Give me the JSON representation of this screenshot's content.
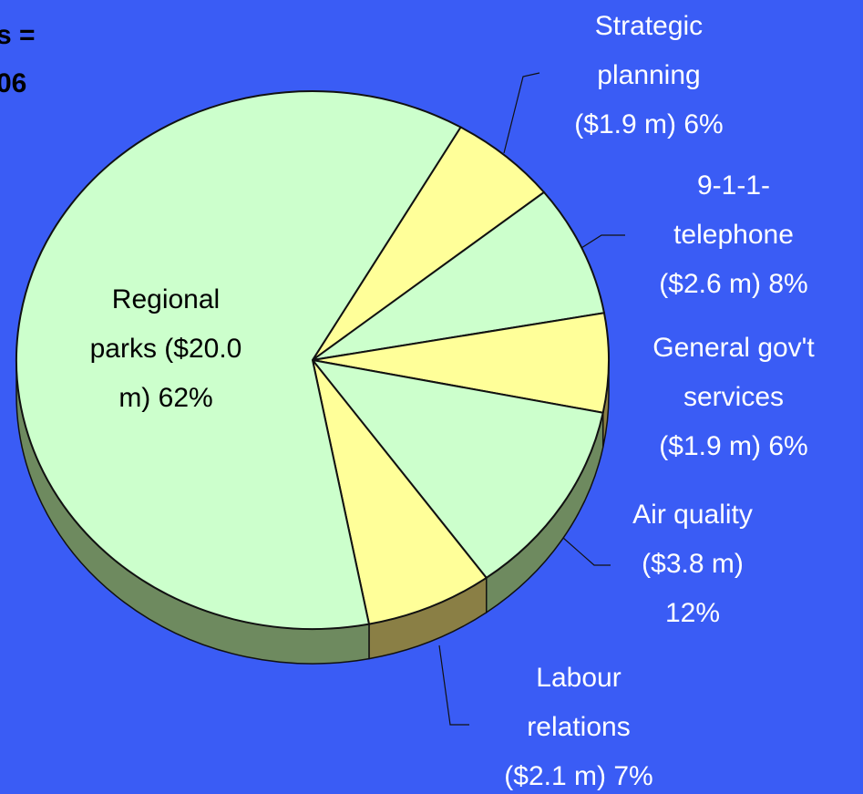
{
  "chart_data": {
    "type": "pie",
    "title_lines": [
      "s =",
      "06"
    ],
    "values": [
      6,
      8,
      6,
      12,
      7,
      62
    ],
    "value_labels": [
      [
        "Strategic",
        "planning",
        "($1.9 m) 6%"
      ],
      [
        "9-1-1-",
        "telephone",
        "($2.6 m) 8%"
      ],
      [
        "General gov't",
        "services",
        "($1.9 m) 6%"
      ],
      [
        "Air quality",
        "($3.8 m)",
        "12%"
      ],
      [
        "Labour",
        "relations",
        "($2.1 m) 7%"
      ],
      [
        "Regional",
        "parks ($20.0",
        "m) 62%"
      ]
    ],
    "colors": [
      "#ffff99",
      "#ccffcc",
      "#ffff99",
      "#ccffcc",
      "#ffff99",
      "#ccffcc"
    ],
    "side_colors": [
      "#8a7f45",
      "#6e8a5f",
      "#8a7f45",
      "#6e8a5f",
      "#8a7f45",
      "#6e8a5f"
    ]
  }
}
